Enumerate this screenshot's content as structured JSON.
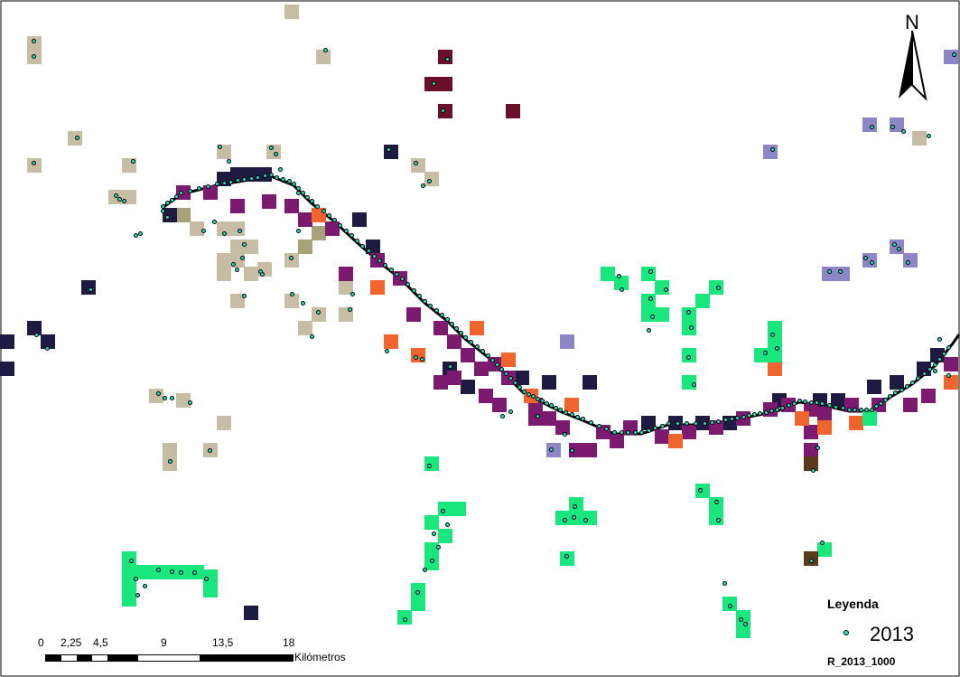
{
  "north_label": "N",
  "legend": {
    "title": "Leyenda",
    "year": "2013",
    "layer": "R_2013_1000",
    "point_color": "#1ee6c0"
  },
  "scalebar": {
    "ticks": [
      "0",
      "2,25",
      "4,5",
      "9",
      "13,5",
      "18"
    ],
    "unit": "Kilómetros"
  },
  "colors": {
    "beige": "#c6bda4",
    "purple": "#7b1a6e",
    "navy": "#1e1b43",
    "orange": "#f0642d",
    "green": "#19e67d",
    "maroon": "#6a0f2a",
    "lavender": "#8c86c6",
    "brown": "#5b3a1c",
    "olive": "#a8a27a"
  }
}
